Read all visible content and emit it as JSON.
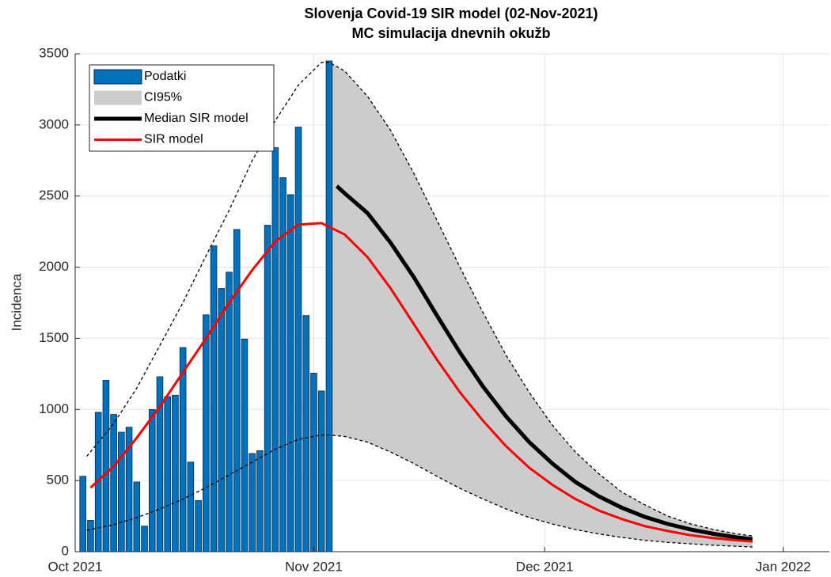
{
  "chart_data": {
    "type": "bar",
    "title": "Slovenja Covid-19 SIR model (02-Nov-2021)",
    "subtitle": "MC simulacija dnevnih okužb",
    "y_label": "Incidenca",
    "xlim": [
      0,
      98
    ],
    "xticks": [
      {
        "value": 0,
        "label": "Oct 2021"
      },
      {
        "value": 31,
        "label": "Nov 2021"
      },
      {
        "value": 61,
        "label": "Dec 2021"
      },
      {
        "value": 92,
        "label": "Jan 2022"
      }
    ],
    "ylim": [
      0,
      3500
    ],
    "yticks": [
      0,
      500,
      1000,
      1500,
      2000,
      2500,
      3000,
      3500
    ],
    "grid": true,
    "legend": "upper left",
    "series": [
      {
        "type": "bar",
        "name": "Podatki",
        "color": "#0072bd",
        "x": [
          1,
          2,
          3,
          4,
          5,
          6,
          7,
          8,
          9,
          10,
          11,
          12,
          13,
          14,
          15,
          16,
          17,
          18,
          19,
          20,
          21,
          22,
          23,
          24,
          25,
          26,
          27,
          28,
          29,
          30,
          31,
          32,
          33
        ],
        "values": [
          530,
          220,
          980,
          1205,
          965,
          840,
          875,
          490,
          180,
          1000,
          1230,
          1090,
          1100,
          1435,
          630,
          360,
          1665,
          2150,
          1850,
          1965,
          2265,
          1495,
          690,
          710,
          2295,
          2840,
          2630,
          2510,
          2985,
          1660,
          1255,
          1130,
          3450
        ]
      },
      {
        "type": "band",
        "name": "CI95%",
        "color": "#cccccc",
        "x": [
          33,
          35,
          38,
          41,
          44,
          47,
          50,
          53,
          56,
          59,
          62,
          65,
          68,
          71,
          74,
          77,
          80,
          83,
          86,
          88
        ],
        "upper": [
          3440,
          3380,
          3200,
          2960,
          2660,
          2330,
          2000,
          1680,
          1380,
          1120,
          890,
          700,
          550,
          420,
          330,
          250,
          195,
          155,
          125,
          110
        ],
        "lower": [
          820,
          810,
          770,
          700,
          620,
          530,
          445,
          370,
          300,
          240,
          195,
          155,
          125,
          100,
          80,
          65,
          55,
          45,
          38,
          33
        ]
      },
      {
        "type": "line",
        "name": "Median SIR model",
        "color": "#000000",
        "x": [
          34,
          35,
          38,
          41,
          44,
          47,
          50,
          53,
          56,
          59,
          62,
          65,
          68,
          71,
          74,
          77,
          80,
          83,
          86,
          88
        ],
        "values": [
          2570,
          2520,
          2380,
          2170,
          1930,
          1660,
          1400,
          1160,
          950,
          770,
          620,
          490,
          390,
          310,
          245,
          195,
          155,
          125,
          100,
          88
        ]
      },
      {
        "type": "line",
        "name": "SIR model",
        "color": "#ff0000",
        "x": [
          2,
          5,
          8,
          11,
          14,
          17,
          20,
          23,
          26,
          29,
          32,
          35,
          38,
          41,
          44,
          47,
          50,
          53,
          56,
          59,
          62,
          65,
          68,
          71,
          74,
          77,
          80,
          83,
          86,
          88
        ],
        "values": [
          450,
          600,
          800,
          1020,
          1260,
          1500,
          1750,
          1980,
          2180,
          2300,
          2310,
          2230,
          2070,
          1850,
          1600,
          1350,
          1120,
          920,
          740,
          590,
          470,
          370,
          290,
          230,
          180,
          145,
          115,
          95,
          80,
          72
        ]
      },
      {
        "type": "bounds",
        "color": "#000000",
        "x": [
          1.5,
          5,
          8,
          11,
          14,
          17,
          20,
          23,
          26,
          29,
          32,
          33,
          35,
          38,
          41,
          44,
          47,
          50,
          53,
          56,
          59,
          62,
          65,
          68,
          71,
          74,
          77,
          80,
          83,
          86,
          88
        ],
        "upper": [
          670,
          900,
          1150,
          1450,
          1750,
          2080,
          2400,
          2750,
          3030,
          3280,
          3440,
          3440,
          3380,
          3200,
          2960,
          2660,
          2330,
          2000,
          1680,
          1380,
          1120,
          890,
          700,
          550,
          420,
          330,
          250,
          195,
          155,
          125,
          110
        ],
        "lower": [
          150,
          190,
          240,
          300,
          370,
          450,
          540,
          630,
          720,
          790,
          820,
          820,
          810,
          770,
          700,
          620,
          530,
          445,
          370,
          300,
          240,
          195,
          155,
          125,
          100,
          80,
          65,
          55,
          45,
          38,
          33
        ]
      }
    ]
  }
}
